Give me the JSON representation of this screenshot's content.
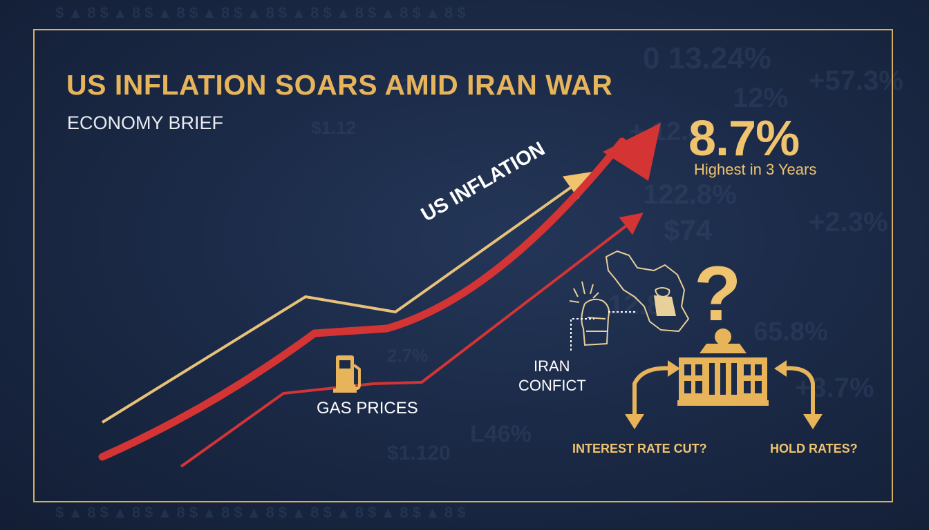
{
  "header": {
    "title": "US INFLATION SOARS AMID IRAN WAR",
    "subtitle": "ECONOMY BRIEF"
  },
  "headline_stat": {
    "value": "8.7%",
    "note": "Highest in 3 Years"
  },
  "labels": {
    "inflation": "US INFLATION",
    "gas": "GAS PRICES",
    "iran_line1": "IRAN",
    "iran_line2": "CONFICT",
    "rate_cut": "INTEREST RATE CUT?",
    "hold": "HOLD RATES?",
    "question": "?"
  },
  "icons": [
    "gas-pump-icon",
    "iran-map-icon",
    "explosion-icon",
    "central-bank-icon",
    "question-mark-icon",
    "curved-arrow-left-icon",
    "curved-arrow-right-icon"
  ],
  "colors": {
    "accent_gold": "#f0c46e",
    "frame_gold": "#d9b05f",
    "arrow_red": "#d43434",
    "background": "#1b2a47",
    "text_white": "#ffffff"
  }
}
